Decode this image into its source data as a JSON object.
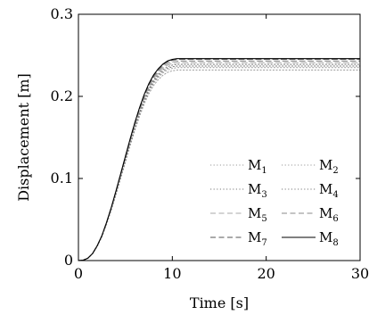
{
  "chart_data": {
    "type": "line",
    "xlabel": "Time [s]",
    "ylabel": "Displacement [m]",
    "xlim": [
      0,
      30
    ],
    "ylim": [
      0,
      0.3
    ],
    "x_ticks": [
      {
        "value": 0,
        "label": "0"
      },
      {
        "value": 10,
        "label": "10"
      },
      {
        "value": 20,
        "label": "20"
      },
      {
        "value": 30,
        "label": "30"
      }
    ],
    "y_ticks": [
      {
        "value": 0,
        "label": "0"
      },
      {
        "value": 0.1,
        "label": "0.1"
      },
      {
        "value": 0.2,
        "label": "0.2"
      },
      {
        "value": 0.3,
        "label": "0.3"
      }
    ],
    "grid": false,
    "legend_position": "bottom-right",
    "x": [
      0,
      0.5,
      1,
      1.5,
      2,
      2.5,
      3,
      3.5,
      4,
      4.5,
      5,
      5.5,
      6,
      6.5,
      7,
      7.5,
      8,
      8.5,
      9,
      9.5,
      10,
      10.5,
      11,
      12,
      14,
      16,
      18,
      20,
      22,
      24,
      26,
      28,
      30
    ],
    "series": [
      {
        "name": "M",
        "sub": "1",
        "style": "dotted",
        "color": "#9a9a9a",
        "plateau": 0.232
      },
      {
        "name": "M",
        "sub": "2",
        "style": "dotted",
        "color": "#9a9a9a",
        "plateau": 0.235
      },
      {
        "name": "M",
        "sub": "3",
        "style": "dotted",
        "color": "#7a7a7a",
        "plateau": 0.237
      },
      {
        "name": "M",
        "sub": "4",
        "style": "dotted",
        "color": "#7a7a7a",
        "plateau": 0.239
      },
      {
        "name": "M",
        "sub": "5",
        "style": "dashed",
        "color": "#a8a8a8",
        "plateau": 0.241
      },
      {
        "name": "M",
        "sub": "6",
        "style": "dashed",
        "color": "#8a8a8a",
        "plateau": 0.243
      },
      {
        "name": "M",
        "sub": "7",
        "style": "dashed",
        "color": "#555555",
        "plateau": 0.245
      },
      {
        "name": "M",
        "sub": "8",
        "style": "solid",
        "color": "#000000",
        "plateau": 0.246
      }
    ],
    "shape": [
      0,
      0.0005,
      0.003,
      0.009,
      0.019,
      0.032,
      0.049,
      0.068,
      0.089,
      0.111,
      0.133,
      0.155,
      0.176,
      0.195,
      0.212,
      0.226,
      0.237,
      0.245,
      0.251,
      0.255,
      0.257,
      0.258,
      0.258,
      0.258,
      0.258,
      0.258,
      0.258,
      0.258,
      0.258,
      0.258,
      0.258,
      0.258,
      0.258
    ]
  }
}
